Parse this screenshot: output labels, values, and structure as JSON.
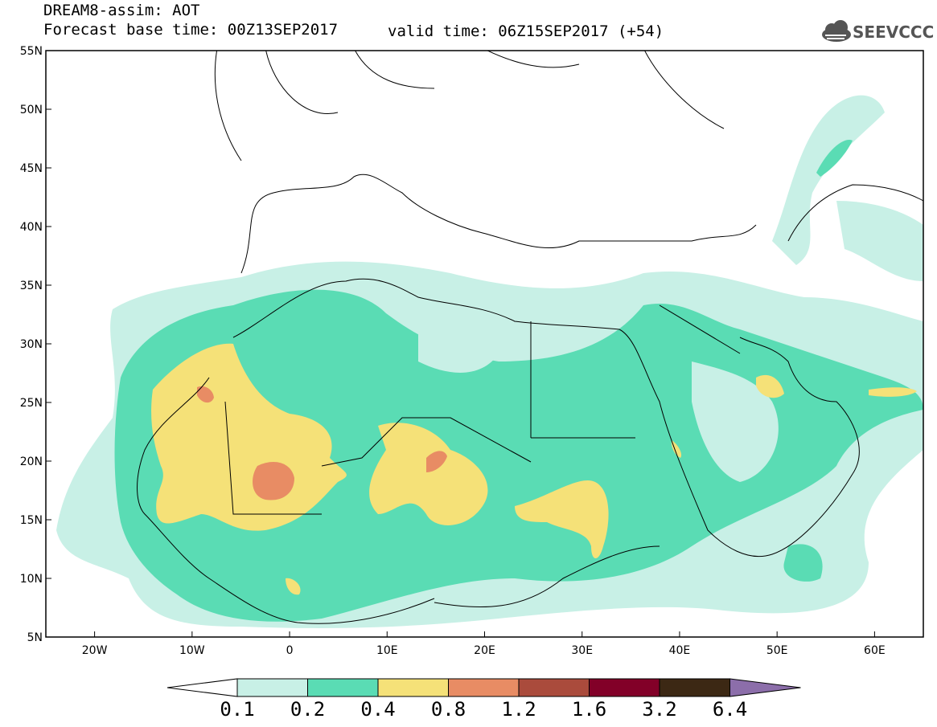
{
  "header": {
    "title": "DREAM8-assim: AOT",
    "base_time": "Forecast base time: 00Z13SEP2017",
    "valid_time": "valid time: 06Z15SEP2017 (+54)",
    "logo_text": "SEEVCCC"
  },
  "map": {
    "lon_range": [
      -25,
      65
    ],
    "lat_range": [
      5,
      55
    ],
    "lat_ticks": [
      "55N",
      "50N",
      "45N",
      "40N",
      "35N",
      "30N",
      "25N",
      "20N",
      "15N",
      "10N",
      "5N"
    ],
    "lon_ticks": [
      "20W",
      "10W",
      "0",
      "10E",
      "20E",
      "30E",
      "40E",
      "50E",
      "60E"
    ],
    "coastline_color": "#000000",
    "background": "#ffffff"
  },
  "colorbar": {
    "levels": [
      "0.1",
      "0.2",
      "0.4",
      "0.8",
      "1.2",
      "1.6",
      "3.2",
      "6.4"
    ],
    "colors": [
      "#c8f0e6",
      "#5adcb4",
      "#f5e178",
      "#e88c64",
      "#aa4b3c",
      "#820028",
      "#3c2814",
      "#8c6eaa"
    ],
    "below_color": "#ffffff"
  }
}
